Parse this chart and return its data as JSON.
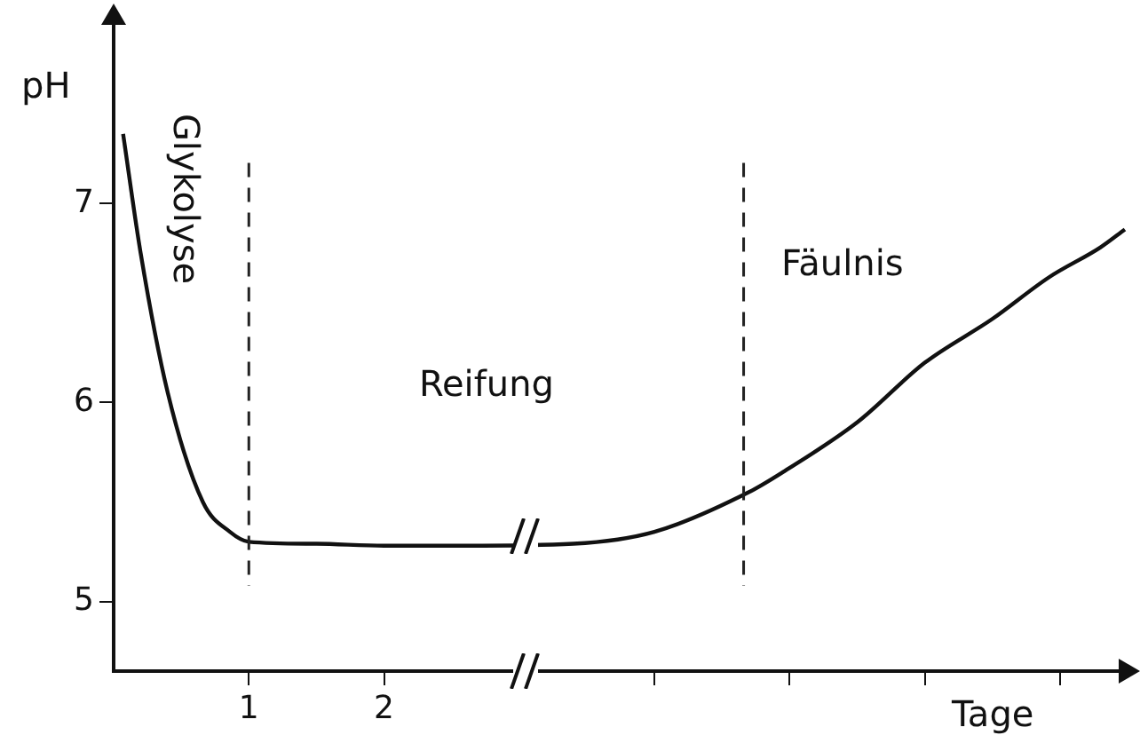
{
  "chart_data": {
    "type": "line",
    "ylabel": "pH",
    "xlabel": "Tage",
    "x": [
      0.07,
      0.2,
      0.4,
      0.66,
      0.86,
      1,
      1.5,
      2,
      2.6,
      3.4,
      4,
      4.7,
      4.95,
      5.5,
      6,
      6.5,
      6.92,
      7.3,
      7.48
    ],
    "series": [
      {
        "color": "#111111",
        "values": [
          7.35,
          6.75,
          6.05,
          5.5,
          5.35,
          5.3,
          5.29,
          5.28,
          5.28,
          5.29,
          5.35,
          5.55,
          5.65,
          5.9,
          6.2,
          6.42,
          6.63,
          6.78,
          6.87
        ]
      }
    ],
    "xlim": [
      0,
      7.5
    ],
    "ylim": [
      4.65,
      7.9
    ],
    "xticks": [
      1,
      2,
      {
        "value": 4,
        "label": null
      },
      {
        "value": 5,
        "label": null
      },
      {
        "value": 6,
        "label": null
      },
      {
        "value": 7,
        "label": null
      }
    ],
    "yticks": [
      5,
      6,
      7
    ],
    "ref_lines": [
      {
        "axis": "x",
        "value": 1,
        "line_style": "dashed",
        "color": "#222222"
      },
      {
        "axis": "x",
        "value": 4.66,
        "line_style": "dashed",
        "color": "#222222"
      }
    ],
    "annotations": [
      "Glykolyse",
      "Reifung",
      "Fäulnis"
    ],
    "grid": false,
    "legend": false,
    "marker": "none",
    "line_style": "solid"
  }
}
